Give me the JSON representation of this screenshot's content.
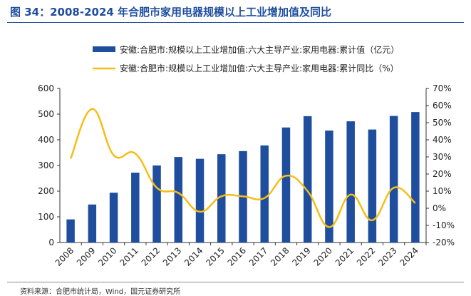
{
  "title": "图 34：2008-2024 年合肥市家用电器规模以上工业增加值及同比",
  "source": "资料来源：合肥市统计局，Wind，国元证券研究所",
  "colors": {
    "bar": "#1f4e9e",
    "line": "#f5be17",
    "title": "#1f4e9e"
  },
  "chart_data": {
    "type": "bar",
    "categories": [
      "2008",
      "2009",
      "2010",
      "2011",
      "2012",
      "2013",
      "2014",
      "2015",
      "2016",
      "2017",
      "2018",
      "2019",
      "2020",
      "2021",
      "2022",
      "2023",
      "2024"
    ],
    "series": [
      {
        "name": "安徽:合肥市:规模以上工业增加值:六大主导产业:家用电器:累计值（亿元）",
        "type": "bar",
        "axis": "left",
        "values": [
          90,
          148,
          194,
          272,
          300,
          333,
          326,
          344,
          356,
          378,
          448,
          492,
          436,
          472,
          440,
          493,
          508
        ]
      },
      {
        "name": "安徽:合肥市:规模以上工业增加值:六大主导产业:家用电器:累计同比（%）",
        "type": "line",
        "axis": "right",
        "values": [
          29,
          58,
          31,
          32,
          12,
          9,
          -2,
          7,
          7,
          6,
          19,
          10,
          -11,
          8,
          -7,
          12,
          3
        ]
      }
    ],
    "y_left": {
      "min": 0,
      "max": 600,
      "ticks": [
        "0",
        "100",
        "200",
        "300",
        "400",
        "500",
        "600"
      ]
    },
    "y_right": {
      "min": -20,
      "max": 70,
      "ticks": [
        "-20%",
        "-10%",
        "0%",
        "10%",
        "20%",
        "30%",
        "40%",
        "50%",
        "60%",
        "70%"
      ]
    },
    "legend_position": "top",
    "grid": false
  }
}
